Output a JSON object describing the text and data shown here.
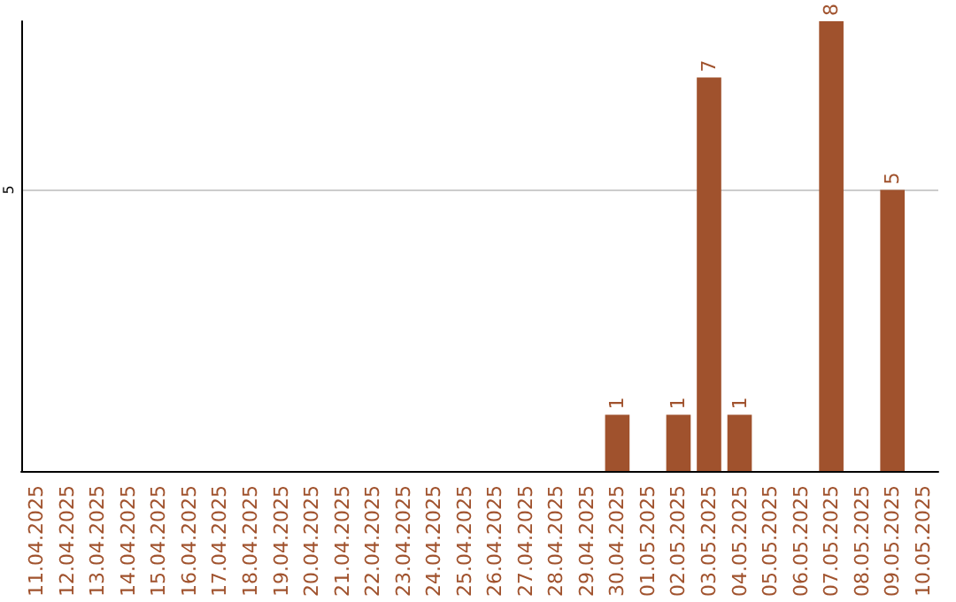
{
  "chart_data": {
    "type": "bar",
    "categories": [
      "11.04.2025",
      "12.04.2025",
      "13.04.2025",
      "14.04.2025",
      "15.04.2025",
      "16.04.2025",
      "17.04.2025",
      "18.04.2025",
      "19.04.2025",
      "20.04.2025",
      "21.04.2025",
      "22.04.2025",
      "23.04.2025",
      "24.04.2025",
      "25.04.2025",
      "26.04.2025",
      "27.04.2025",
      "28.04.2025",
      "29.04.2025",
      "30.04.2025",
      "01.05.2025",
      "02.05.2025",
      "03.05.2025",
      "04.05.2025",
      "05.05.2025",
      "06.05.2025",
      "07.05.2025",
      "08.05.2025",
      "09.05.2025",
      "10.05.2025"
    ],
    "values": [
      null,
      null,
      null,
      null,
      null,
      null,
      null,
      null,
      null,
      null,
      null,
      null,
      null,
      null,
      null,
      null,
      null,
      null,
      null,
      1,
      null,
      1,
      7,
      1,
      null,
      null,
      8,
      null,
      5,
      null
    ],
    "color": "#a0522d",
    "ylim": [
      0,
      8
    ],
    "yticks": [
      5
    ],
    "grid": "y",
    "data_labels": true
  }
}
